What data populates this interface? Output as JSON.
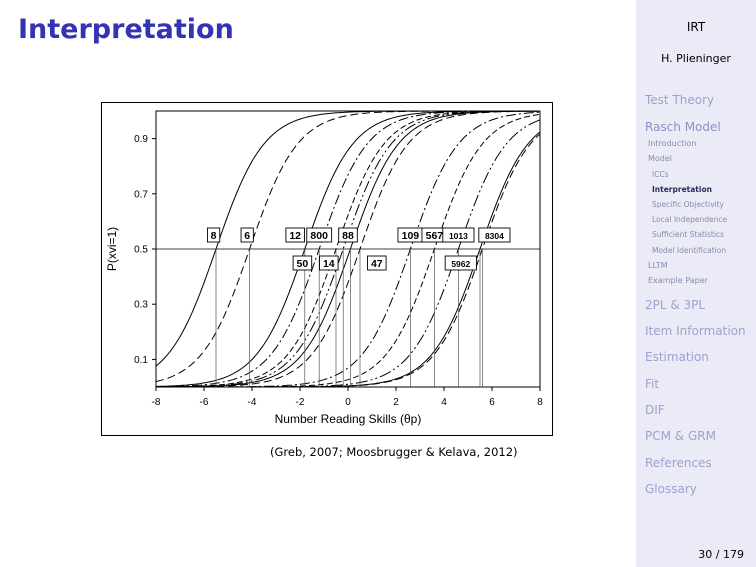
{
  "slide": {
    "title": "Interpretation",
    "caption": "(Greb, 2007; Moosbrugger & Kelava, 2012)",
    "page": "30 / 179"
  },
  "sidebar": {
    "title": "IRT",
    "author": "H. Plieninger",
    "sections": [
      {
        "label": "Test Theory"
      },
      {
        "label": "Rasch Model",
        "current": true
      },
      {
        "label": "2PL & 3PL"
      },
      {
        "label": "Item Information"
      },
      {
        "label": "Estimation"
      },
      {
        "label": "Fit"
      },
      {
        "label": "DIF"
      },
      {
        "label": "PCM & GRM"
      },
      {
        "label": "References"
      },
      {
        "label": "Glossary"
      }
    ],
    "subsections": [
      "Introduction",
      "Model",
      "LLTM",
      "Example Paper"
    ],
    "subsubsections": [
      "ICCs",
      "Interpretation",
      "Specific Objectivity",
      "Local Independence",
      "Sufficient Statistics",
      "Model Identification"
    ],
    "active_item": "Interpretation"
  },
  "chart_data": {
    "type": "line",
    "xlabel": "Number Reading Skills (θp)",
    "ylabel": "P(xvi=1)",
    "xlim": [
      -8,
      8
    ],
    "ylim": [
      0,
      1
    ],
    "xticks": [
      "-8",
      "-6",
      "-4",
      "-2",
      "0",
      "2",
      "4",
      "6",
      "8"
    ],
    "yticks": [
      "0.1",
      "0.3",
      "0.5",
      "0.7",
      "0.9"
    ],
    "reference_line_y": 0.5,
    "item_difficulties": [
      {
        "item": "8",
        "difficulty": -5.5
      },
      {
        "item": "6",
        "difficulty": -4.1
      },
      {
        "item": "12",
        "difficulty": -1.8
      },
      {
        "item": "50",
        "difficulty": -1.2
      },
      {
        "item": "800",
        "difficulty": -0.5
      },
      {
        "item": "14",
        "difficulty": -0.2
      },
      {
        "item": "88",
        "difficulty": 0.1
      },
      {
        "item": "47",
        "difficulty": 0.5
      },
      {
        "item": "109",
        "difficulty": 2.6
      },
      {
        "item": "567",
        "difficulty": 3.6
      },
      {
        "item": "5962",
        "difficulty": 4.6
      },
      {
        "item": "1013",
        "difficulty": 5.5
      },
      {
        "item": "8304",
        "difficulty": 5.6
      }
    ],
    "grid": false
  }
}
